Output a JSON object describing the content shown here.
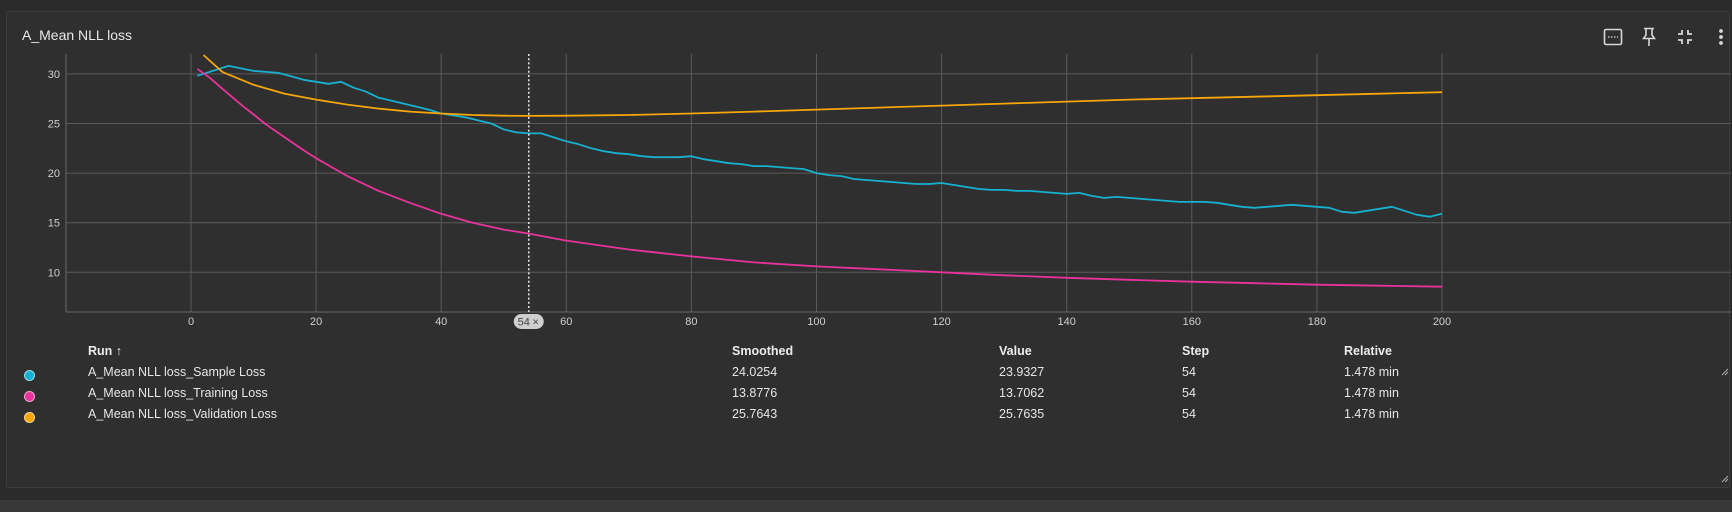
{
  "card": {
    "title": "A_Mean NLL loss"
  },
  "toolbar": {
    "items": [
      {
        "name": "fit-domain-icon"
      },
      {
        "name": "pin-icon"
      },
      {
        "name": "collapse-icon"
      },
      {
        "name": "more-vert-icon"
      }
    ]
  },
  "colors": {
    "sample": "#17b0cf",
    "training": "#e8339a",
    "validation": "#f5a60a",
    "background": "#2f2f2f",
    "grid": "#5a5a5a"
  },
  "chart_data": {
    "type": "line",
    "xlim": [
      0,
      200
    ],
    "ylim": [
      6,
      32
    ],
    "x_ticks": [
      0,
      20,
      40,
      60,
      80,
      100,
      120,
      140,
      160,
      180,
      200
    ],
    "y_ticks": [
      10,
      15,
      20,
      25,
      30
    ],
    "grid": true,
    "cursor_step": 54,
    "cursor_label": "54",
    "series": [
      {
        "name": "A_Mean NLL loss_Sample Loss",
        "color": "#17b0cf",
        "x": [
          1,
          4,
          6,
          10,
          14,
          18,
          22,
          24,
          26,
          28,
          30,
          32,
          34,
          36,
          38,
          40,
          42,
          44,
          46,
          48,
          50,
          52,
          54,
          56,
          58,
          60,
          62,
          64,
          66,
          68,
          70,
          72,
          74,
          76,
          78,
          80,
          82,
          84,
          86,
          88,
          90,
          92,
          94,
          96,
          98,
          100,
          102,
          104,
          106,
          108,
          110,
          112,
          114,
          116,
          118,
          120,
          122,
          124,
          126,
          128,
          130,
          132,
          134,
          136,
          138,
          140,
          142,
          144,
          146,
          148,
          150,
          152,
          154,
          156,
          158,
          160,
          162,
          164,
          166,
          168,
          170,
          172,
          174,
          176,
          178,
          180,
          182,
          184,
          186,
          188,
          190,
          192,
          194,
          196,
          198,
          200
        ],
        "y": [
          29.8,
          30.4,
          30.8,
          30.3,
          30.1,
          29.4,
          29.0,
          29.2,
          28.6,
          28.2,
          27.6,
          27.3,
          27.0,
          26.7,
          26.4,
          26.0,
          25.8,
          25.6,
          25.3,
          25.0,
          24.4,
          24.1,
          24.0,
          24.0,
          23.6,
          23.2,
          22.9,
          22.5,
          22.2,
          22.0,
          21.9,
          21.7,
          21.6,
          21.6,
          21.6,
          21.7,
          21.4,
          21.2,
          21.0,
          20.9,
          20.7,
          20.7,
          20.6,
          20.5,
          20.4,
          20.0,
          19.8,
          19.7,
          19.4,
          19.3,
          19.2,
          19.1,
          19.0,
          18.9,
          18.9,
          19.0,
          18.8,
          18.6,
          18.4,
          18.3,
          18.3,
          18.2,
          18.2,
          18.1,
          18.0,
          17.9,
          18.0,
          17.7,
          17.5,
          17.6,
          17.5,
          17.4,
          17.3,
          17.2,
          17.1,
          17.1,
          17.1,
          17.0,
          16.8,
          16.6,
          16.5,
          16.6,
          16.7,
          16.8,
          16.7,
          16.6,
          16.5,
          16.1,
          16.0,
          16.2,
          16.4,
          16.6,
          16.2,
          15.8,
          15.6,
          15.9
        ]
      },
      {
        "name": "A_Mean NLL loss_Training Loss",
        "color": "#e8339a",
        "x": [
          1,
          3,
          5,
          8,
          10,
          12,
          15,
          18,
          20,
          25,
          30,
          35,
          40,
          45,
          50,
          54,
          60,
          70,
          80,
          90,
          100,
          110,
          120,
          130,
          140,
          150,
          160,
          170,
          180,
          190,
          200
        ],
        "y": [
          30.5,
          29.6,
          28.5,
          26.9,
          25.9,
          24.9,
          23.6,
          22.3,
          21.5,
          19.7,
          18.2,
          17.0,
          15.9,
          15.0,
          14.3,
          13.9,
          13.2,
          12.3,
          11.6,
          11.0,
          10.6,
          10.3,
          10.0,
          9.7,
          9.45,
          9.25,
          9.05,
          8.9,
          8.75,
          8.65,
          8.55
        ]
      },
      {
        "name": "A_Mean NLL loss_Validation Loss",
        "color": "#f5a60a",
        "x": [
          2,
          5,
          10,
          15,
          20,
          25,
          30,
          35,
          40,
          45,
          50,
          54,
          60,
          70,
          80,
          90,
          100,
          110,
          120,
          130,
          140,
          150,
          160,
          170,
          180,
          190,
          200
        ],
        "y": [
          31.9,
          30.2,
          28.9,
          28.0,
          27.4,
          26.9,
          26.5,
          26.2,
          26.0,
          25.85,
          25.78,
          25.76,
          25.78,
          25.85,
          26.0,
          26.2,
          26.4,
          26.6,
          26.8,
          27.0,
          27.2,
          27.4,
          27.55,
          27.7,
          27.85,
          28.0,
          28.15
        ]
      }
    ]
  },
  "table": {
    "headers": {
      "run": "Run ↑",
      "smoothed": "Smoothed",
      "value": "Value",
      "step": "Step",
      "relative": "Relative"
    },
    "rows": [
      {
        "color": "#17b0cf",
        "run": "A_Mean NLL loss_Sample Loss",
        "smoothed": "24.0254",
        "value": "23.9327",
        "step": "54",
        "relative": "1.478 min"
      },
      {
        "color": "#e8339a",
        "run": "A_Mean NLL loss_Training Loss",
        "smoothed": "13.8776",
        "value": "13.7062",
        "step": "54",
        "relative": "1.478 min"
      },
      {
        "color": "#f5a60a",
        "run": "A_Mean NLL loss_Validation Loss",
        "smoothed": "25.7643",
        "value": "25.7635",
        "step": "54",
        "relative": "1.478 min"
      }
    ]
  }
}
